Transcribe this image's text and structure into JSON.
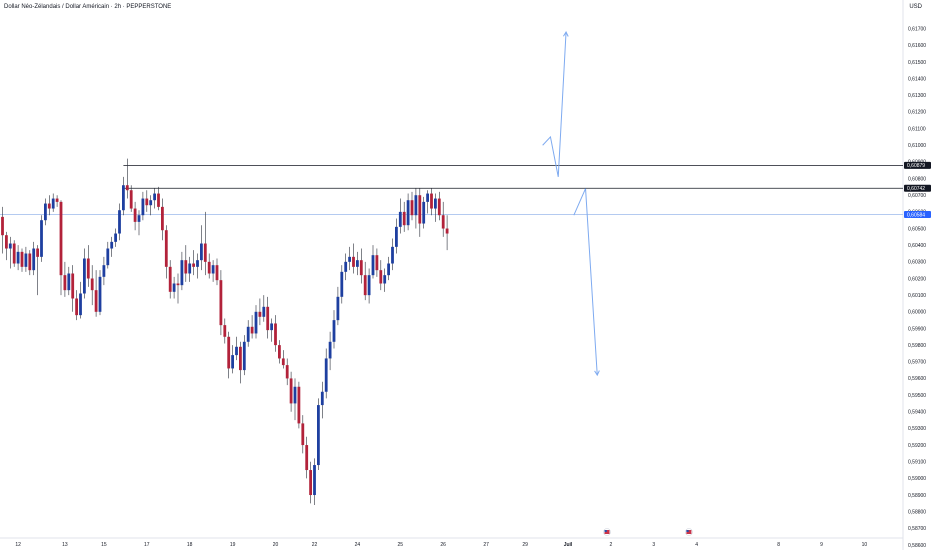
{
  "header": {
    "title": "Dollar Néo-Zélandais / Dollar Américain · 2h · PEPPERSTONE",
    "currency": "USD"
  },
  "colors": {
    "up": "#1e3fa0",
    "down": "#b2223a",
    "wick": "#2a2e39",
    "projection": "#7eaaf0",
    "level": "#131722",
    "current": "#a9c3ee",
    "current_tag": "#2962ff"
  },
  "chart_data": {
    "type": "candlestick",
    "title": "Dollar Néo-Zélandais / Dollar Américain · 2h · PEPPERSTONE",
    "ylim": [
      0.5866,
      0.6177
    ],
    "y_ticks": [
      "0,61700",
      "0,61600",
      "0,61500",
      "0,61400",
      "0,61300",
      "0,61200",
      "0,61100",
      "0,61000",
      "0,60900",
      "0,60800",
      "0,60700",
      "0,60600",
      "0,60500",
      "0,60400",
      "0,60300",
      "0,60200",
      "0,60100",
      "0,60000",
      "0,59900",
      "0,59800",
      "0,59700",
      "0,59600",
      "0,59500",
      "0,59400",
      "0,59300",
      "0,59200",
      "0,59100",
      "0,59000",
      "0,58900",
      "0,58800",
      "0,58700",
      "0,58600"
    ],
    "x_ticks": [
      {
        "label": "12",
        "bar": 4
      },
      {
        "label": "13",
        "bar": 16
      },
      {
        "label": "15",
        "bar": 26
      },
      {
        "label": "17",
        "bar": 37
      },
      {
        "label": "18",
        "bar": 48
      },
      {
        "label": "19",
        "bar": 59
      },
      {
        "label": "20",
        "bar": 70
      },
      {
        "label": "22",
        "bar": 80
      },
      {
        "label": "24",
        "bar": 91
      },
      {
        "label": "25",
        "bar": 102
      },
      {
        "label": "26",
        "bar": 113
      },
      {
        "label": "27",
        "bar": 124
      },
      {
        "label": "29",
        "bar": 134
      },
      {
        "label": "Juil",
        "bar": 145
      },
      {
        "label": "2",
        "bar": 156
      },
      {
        "label": "3",
        "bar": 167
      },
      {
        "label": "4",
        "bar": 178
      },
      {
        "label": "8",
        "bar": 199
      },
      {
        "label": "9",
        "bar": 210
      },
      {
        "label": "10",
        "bar": 221
      }
    ],
    "candles": [
      [
        0.6057,
        0.6063,
        0.6035,
        0.6046
      ],
      [
        0.6046,
        0.6048,
        0.6031,
        0.6038
      ],
      [
        0.6038,
        0.6045,
        0.6026,
        0.6041
      ],
      [
        0.6041,
        0.6043,
        0.6027,
        0.6029
      ],
      [
        0.6029,
        0.604,
        0.6025,
        0.6036
      ],
      [
        0.6036,
        0.6038,
        0.6024,
        0.6027
      ],
      [
        0.6027,
        0.6039,
        0.6024,
        0.6035
      ],
      [
        0.6035,
        0.6037,
        0.6022,
        0.6025
      ],
      [
        0.6025,
        0.6042,
        0.6022,
        0.6038
      ],
      [
        0.6038,
        0.604,
        0.601,
        0.6033
      ],
      [
        0.6033,
        0.6058,
        0.603,
        0.6055
      ],
      [
        0.6055,
        0.6068,
        0.6052,
        0.6065
      ],
      [
        0.6065,
        0.607,
        0.6058,
        0.6062
      ],
      [
        0.6062,
        0.6071,
        0.606,
        0.6068
      ],
      [
        0.6068,
        0.607,
        0.6063,
        0.6066
      ],
      [
        0.6066,
        0.6067,
        0.601,
        0.6022
      ],
      [
        0.6022,
        0.603,
        0.6009,
        0.6013
      ],
      [
        0.6013,
        0.6027,
        0.601,
        0.6023
      ],
      [
        0.6023,
        0.6028,
        0.6,
        0.6008
      ],
      [
        0.6008,
        0.6013,
        0.5995,
        0.5998
      ],
      [
        0.5998,
        0.6018,
        0.5996,
        0.6011
      ],
      [
        0.6011,
        0.6038,
        0.6008,
        0.6032
      ],
      [
        0.6032,
        0.604,
        0.6015,
        0.602
      ],
      [
        0.602,
        0.6028,
        0.6004,
        0.6013
      ],
      [
        0.6013,
        0.6025,
        0.5997,
        0.6
      ],
      [
        0.6,
        0.6025,
        0.5998,
        0.6021
      ],
      [
        0.6021,
        0.6033,
        0.6016,
        0.6028
      ],
      [
        0.6028,
        0.6042,
        0.6026,
        0.6038
      ],
      [
        0.6038,
        0.6045,
        0.6033,
        0.6042
      ],
      [
        0.6042,
        0.605,
        0.6039,
        0.6047
      ],
      [
        0.6047,
        0.6065,
        0.6043,
        0.6061
      ],
      [
        0.6061,
        0.6081,
        0.6058,
        0.6076
      ],
      [
        0.6076,
        0.6092,
        0.6068,
        0.6073
      ],
      [
        0.6073,
        0.6076,
        0.606,
        0.6062
      ],
      [
        0.6062,
        0.6066,
        0.6049,
        0.6054
      ],
      [
        0.6054,
        0.6061,
        0.6046,
        0.6058
      ],
      [
        0.6058,
        0.6072,
        0.6055,
        0.6068
      ],
      [
        0.6068,
        0.6073,
        0.606,
        0.6064
      ],
      [
        0.6064,
        0.607,
        0.6058,
        0.6067
      ],
      [
        0.6067,
        0.6074,
        0.6062,
        0.6071
      ],
      [
        0.6071,
        0.6075,
        0.6061,
        0.6063
      ],
      [
        0.6063,
        0.6068,
        0.6043,
        0.6049
      ],
      [
        0.6049,
        0.6052,
        0.602,
        0.6027
      ],
      [
        0.6027,
        0.6031,
        0.6008,
        0.6012
      ],
      [
        0.6012,
        0.6021,
        0.6008,
        0.6017
      ],
      [
        0.6017,
        0.6023,
        0.6005,
        0.6016
      ],
      [
        0.6016,
        0.6036,
        0.6013,
        0.6031
      ],
      [
        0.6031,
        0.604,
        0.6018,
        0.6023
      ],
      [
        0.6023,
        0.6033,
        0.6018,
        0.6029
      ],
      [
        0.6029,
        0.6037,
        0.6022,
        0.6027
      ],
      [
        0.6027,
        0.6035,
        0.602,
        0.6031
      ],
      [
        0.6031,
        0.6052,
        0.6025,
        0.6041
      ],
      [
        0.6041,
        0.606,
        0.6022,
        0.603
      ],
      [
        0.603,
        0.6035,
        0.602,
        0.6023
      ],
      [
        0.6023,
        0.6031,
        0.6018,
        0.6028
      ],
      [
        0.6028,
        0.6032,
        0.6016,
        0.6019
      ],
      [
        0.6019,
        0.6025,
        0.5986,
        0.5992
      ],
      [
        0.5992,
        0.5996,
        0.5981,
        0.5985
      ],
      [
        0.5985,
        0.5988,
        0.596,
        0.5966
      ],
      [
        0.5966,
        0.598,
        0.5963,
        0.5974
      ],
      [
        0.5974,
        0.5985,
        0.5971,
        0.5979
      ],
      [
        0.5979,
        0.5982,
        0.5957,
        0.5965
      ],
      [
        0.5965,
        0.5986,
        0.5962,
        0.5982
      ],
      [
        0.5982,
        0.5995,
        0.5979,
        0.5991
      ],
      [
        0.5991,
        0.5998,
        0.5984,
        0.5987
      ],
      [
        0.5987,
        0.6004,
        0.5984,
        0.6
      ],
      [
        0.6,
        0.6008,
        0.5992,
        0.5997
      ],
      [
        0.5997,
        0.601,
        0.5994,
        0.6003
      ],
      [
        0.6003,
        0.6009,
        0.5984,
        0.5989
      ],
      [
        0.5989,
        0.5996,
        0.5982,
        0.5993
      ],
      [
        0.5993,
        0.5998,
        0.5976,
        0.598
      ],
      [
        0.598,
        0.5983,
        0.5969,
        0.5972
      ],
      [
        0.5972,
        0.5977,
        0.5966,
        0.5968
      ],
      [
        0.5968,
        0.5972,
        0.5956,
        0.596
      ],
      [
        0.596,
        0.5964,
        0.594,
        0.5945
      ],
      [
        0.5945,
        0.596,
        0.5935,
        0.5955
      ],
      [
        0.5955,
        0.5958,
        0.593,
        0.5933
      ],
      [
        0.5933,
        0.5938,
        0.5915,
        0.592
      ],
      [
        0.592,
        0.5925,
        0.59,
        0.5905
      ],
      [
        0.5905,
        0.591,
        0.5885,
        0.589
      ],
      [
        0.589,
        0.5912,
        0.5884,
        0.5908
      ],
      [
        0.5908,
        0.5948,
        0.5905,
        0.5944
      ],
      [
        0.5944,
        0.5958,
        0.5936,
        0.5952
      ],
      [
        0.5952,
        0.5978,
        0.5948,
        0.5972
      ],
      [
        0.5972,
        0.5988,
        0.5965,
        0.5982
      ],
      [
        0.5982,
        0.6001,
        0.5978,
        0.5995
      ],
      [
        0.5995,
        0.6015,
        0.5992,
        0.6009
      ],
      [
        0.6009,
        0.6028,
        0.6005,
        0.6024
      ],
      [
        0.6024,
        0.6035,
        0.6019,
        0.603
      ],
      [
        0.603,
        0.6039,
        0.6025,
        0.6033
      ],
      [
        0.6033,
        0.6041,
        0.6023,
        0.6027
      ],
      [
        0.6027,
        0.6036,
        0.6022,
        0.6031
      ],
      [
        0.6031,
        0.6038,
        0.6017,
        0.6022
      ],
      [
        0.6022,
        0.603,
        0.6007,
        0.601
      ],
      [
        0.601,
        0.6026,
        0.6005,
        0.6022
      ],
      [
        0.6022,
        0.604,
        0.602,
        0.6034
      ],
      [
        0.6034,
        0.6038,
        0.6021,
        0.6025
      ],
      [
        0.6025,
        0.6031,
        0.6013,
        0.6017
      ],
      [
        0.6017,
        0.6026,
        0.6012,
        0.6022
      ],
      [
        0.6022,
        0.6033,
        0.6019,
        0.6029
      ],
      [
        0.6029,
        0.6044,
        0.6025,
        0.6039
      ],
      [
        0.6039,
        0.6056,
        0.6035,
        0.6051
      ],
      [
        0.6051,
        0.6068,
        0.6047,
        0.606
      ],
      [
        0.606,
        0.6066,
        0.6048,
        0.6052
      ],
      [
        0.6052,
        0.6071,
        0.6049,
        0.6067
      ],
      [
        0.6067,
        0.6072,
        0.6055,
        0.6058
      ],
      [
        0.6058,
        0.6074,
        0.605,
        0.607
      ],
      [
        0.607,
        0.6074,
        0.6045,
        0.6053
      ],
      [
        0.6053,
        0.6069,
        0.605,
        0.6066
      ],
      [
        0.6066,
        0.6073,
        0.6059,
        0.6071
      ],
      [
        0.6071,
        0.6074,
        0.6058,
        0.6062
      ],
      [
        0.6062,
        0.6071,
        0.6054,
        0.6068
      ],
      [
        0.6068,
        0.6072,
        0.6055,
        0.6058
      ],
      [
        0.6058,
        0.6066,
        0.6045,
        0.605
      ],
      [
        0.605,
        0.6058,
        0.6037,
        0.6047
      ]
    ],
    "levels": [
      {
        "price": 0.60879,
        "label": "0,60879",
        "start_bar": 31
      },
      {
        "price": 0.60742,
        "label": "0,60742",
        "start_bar": 31
      },
      {
        "price": 0.60584,
        "label": "0,60584",
        "current": true
      }
    ],
    "projections": [
      {
        "name": "bullish",
        "points": [
          [
            138.5,
            0.61
          ],
          [
            140.5,
            0.6105
          ],
          [
            142.5,
            0.6081
          ],
          [
            144.5,
            0.6168
          ]
        ]
      },
      {
        "name": "bearish",
        "points": [
          [
            146.5,
            0.6058
          ],
          [
            149.5,
            0.6074
          ],
          [
            152.5,
            0.5962
          ]
        ]
      }
    ]
  }
}
